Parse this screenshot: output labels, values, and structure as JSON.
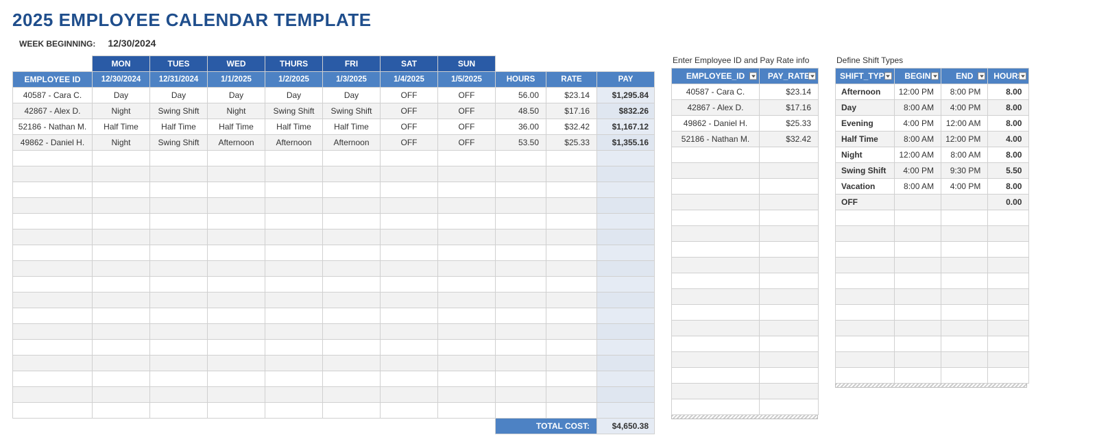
{
  "title": "2025 EMPLOYEE CALENDAR TEMPLATE",
  "week_label": "WEEK BEGINNING:",
  "week_date": "12/30/2024",
  "colors": {
    "header_dark": "#2a5ba6",
    "header_light": "#4d82c4",
    "pay_bg": "#e5ebf4",
    "alt_row": "#f2f2f2",
    "border": "#d0d0d0",
    "title": "#1f4e8c"
  },
  "schedule": {
    "day_names": [
      "MON",
      "TUES",
      "WED",
      "THURS",
      "FRI",
      "SAT",
      "SUN"
    ],
    "dates": [
      "12/30/2024",
      "12/31/2024",
      "1/1/2025",
      "1/2/2025",
      "1/3/2025",
      "1/4/2025",
      "1/5/2025"
    ],
    "col_headers": {
      "empid": "EMPLOYEE ID",
      "hours": "HOURS",
      "rate": "RATE",
      "pay": "PAY"
    },
    "rows": [
      {
        "empid": "40587 - Cara C.",
        "shifts": [
          "Day",
          "Day",
          "Day",
          "Day",
          "Day",
          "OFF",
          "OFF"
        ],
        "hours": "56.00",
        "rate": "$23.14",
        "pay": "$1,295.84"
      },
      {
        "empid": "42867 - Alex D.",
        "shifts": [
          "Night",
          "Swing Shift",
          "Night",
          "Swing Shift",
          "Swing Shift",
          "OFF",
          "OFF"
        ],
        "hours": "48.50",
        "rate": "$17.16",
        "pay": "$832.26"
      },
      {
        "empid": "52186 - Nathan M.",
        "shifts": [
          "Half Time",
          "Half Time",
          "Half Time",
          "Half Time",
          "Half Time",
          "OFF",
          "OFF"
        ],
        "hours": "36.00",
        "rate": "$32.42",
        "pay": "$1,167.12"
      },
      {
        "empid": "49862 - Daniel H.",
        "shifts": [
          "Night",
          "Swing Shift",
          "Afternoon",
          "Afternoon",
          "Afternoon",
          "OFF",
          "OFF"
        ],
        "hours": "53.50",
        "rate": "$25.33",
        "pay": "$1,355.16"
      }
    ],
    "empty_rows": 17,
    "total_label": "TOTAL COST:",
    "total_value": "$4,650.38"
  },
  "employees": {
    "section_label": "Enter Employee ID and Pay Rate info",
    "headers": {
      "id": "EMPLOYEE_ID",
      "rate": "PAY_RATE"
    },
    "rows": [
      {
        "id": "40587 - Cara C.",
        "rate": "$23.14"
      },
      {
        "id": "42867 - Alex D.",
        "rate": "$17.16"
      },
      {
        "id": "49862 - Daniel H.",
        "rate": "$25.33"
      },
      {
        "id": "52186 - Nathan M.",
        "rate": "$32.42"
      }
    ],
    "empty_rows": 17
  },
  "shifts": {
    "section_label": "Define Shift Types",
    "headers": {
      "type": "SHIFT_TYPE",
      "begin": "BEGIN",
      "end": "END",
      "hours": "HOURS"
    },
    "rows": [
      {
        "type": "Afternoon",
        "begin": "12:00 PM",
        "end": "8:00 PM",
        "hours": "8.00"
      },
      {
        "type": "Day",
        "begin": "8:00 AM",
        "end": "4:00 PM",
        "hours": "8.00"
      },
      {
        "type": "Evening",
        "begin": "4:00 PM",
        "end": "12:00 AM",
        "hours": "8.00"
      },
      {
        "type": "Half Time",
        "begin": "8:00 AM",
        "end": "12:00 PM",
        "hours": "4.00"
      },
      {
        "type": "Night",
        "begin": "12:00 AM",
        "end": "8:00 AM",
        "hours": "8.00"
      },
      {
        "type": "Swing Shift",
        "begin": "4:00 PM",
        "end": "9:30 PM",
        "hours": "5.50"
      },
      {
        "type": "Vacation",
        "begin": "8:00 AM",
        "end": "4:00 PM",
        "hours": "8.00"
      },
      {
        "type": "OFF",
        "begin": "",
        "end": "",
        "hours": "0.00"
      }
    ],
    "empty_rows": 11
  }
}
